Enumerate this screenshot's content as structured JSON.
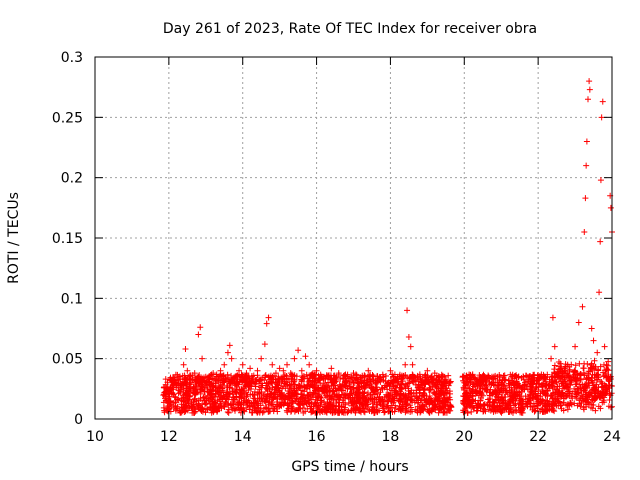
{
  "chart_data": {
    "type": "scatter",
    "title": "Day 261 of 2023, Rate Of TEC Index for receiver obra",
    "xlabel": "GPS time / hours",
    "ylabel": "ROTI / TECUs",
    "xlim": [
      10,
      24
    ],
    "ylim": [
      0,
      0.3
    ],
    "x_ticks": [
      10,
      12,
      14,
      16,
      18,
      20,
      22,
      24
    ],
    "x_tick_labels": [
      "10",
      "12",
      "14",
      "16",
      "18",
      "20",
      "22",
      "24"
    ],
    "y_ticks": [
      0,
      0.05,
      0.1,
      0.15,
      0.2,
      0.25,
      0.3
    ],
    "y_tick_labels": [
      "0",
      "0.05",
      "0.1",
      "0.15",
      "0.2",
      "0.25",
      "0.3"
    ],
    "grid": true,
    "marker": "+",
    "marker_color": "#ff0000",
    "series": [
      {
        "points": [
          [
            11.9,
            0.019
          ],
          [
            12.0,
            0.025
          ],
          [
            12.1,
            0.032
          ],
          [
            12.2,
            0.028
          ],
          [
            12.3,
            0.035
          ],
          [
            12.4,
            0.045
          ],
          [
            12.45,
            0.058
          ],
          [
            12.5,
            0.04
          ],
          [
            12.6,
            0.03
          ],
          [
            12.7,
            0.038
          ],
          [
            12.8,
            0.07
          ],
          [
            12.85,
            0.076
          ],
          [
            12.9,
            0.05
          ],
          [
            13.0,
            0.035
          ],
          [
            13.1,
            0.03
          ],
          [
            13.2,
            0.038
          ],
          [
            13.3,
            0.032
          ],
          [
            13.4,
            0.04
          ],
          [
            13.5,
            0.045
          ],
          [
            13.6,
            0.055
          ],
          [
            13.65,
            0.061
          ],
          [
            13.7,
            0.05
          ],
          [
            13.8,
            0.035
          ],
          [
            13.9,
            0.04
          ],
          [
            14.0,
            0.045
          ],
          [
            14.1,
            0.038
          ],
          [
            14.2,
            0.042
          ],
          [
            14.3,
            0.036
          ],
          [
            14.4,
            0.04
          ],
          [
            14.5,
            0.05
          ],
          [
            14.6,
            0.062
          ],
          [
            14.65,
            0.079
          ],
          [
            14.7,
            0.084
          ],
          [
            14.8,
            0.045
          ],
          [
            14.9,
            0.038
          ],
          [
            15.0,
            0.042
          ],
          [
            15.1,
            0.04
          ],
          [
            15.2,
            0.045
          ],
          [
            15.3,
            0.038
          ],
          [
            15.4,
            0.05
          ],
          [
            15.5,
            0.057
          ],
          [
            15.6,
            0.04
          ],
          [
            15.7,
            0.052
          ],
          [
            15.8,
            0.045
          ],
          [
            15.9,
            0.038
          ],
          [
            16.0,
            0.04
          ],
          [
            16.2,
            0.035
          ],
          [
            16.4,
            0.042
          ],
          [
            16.6,
            0.038
          ],
          [
            16.8,
            0.035
          ],
          [
            17.0,
            0.038
          ],
          [
            17.2,
            0.034
          ],
          [
            17.4,
            0.04
          ],
          [
            17.6,
            0.032
          ],
          [
            17.8,
            0.035
          ],
          [
            18.0,
            0.04
          ],
          [
            18.2,
            0.035
          ],
          [
            18.4,
            0.045
          ],
          [
            18.45,
            0.09
          ],
          [
            18.5,
            0.068
          ],
          [
            18.55,
            0.06
          ],
          [
            18.6,
            0.045
          ],
          [
            18.8,
            0.035
          ],
          [
            19.0,
            0.04
          ],
          [
            19.2,
            0.038
          ],
          [
            19.4,
            0.035
          ],
          [
            19.6,
            0.03
          ],
          [
            20.0,
            0.03
          ],
          [
            20.2,
            0.035
          ],
          [
            20.4,
            0.028
          ],
          [
            20.6,
            0.032
          ],
          [
            20.8,
            0.035
          ],
          [
            21.0,
            0.03
          ],
          [
            21.2,
            0.032
          ],
          [
            21.4,
            0.03
          ],
          [
            21.6,
            0.035
          ],
          [
            21.8,
            0.03
          ],
          [
            22.0,
            0.032
          ],
          [
            22.2,
            0.035
          ],
          [
            22.35,
            0.05
          ],
          [
            22.4,
            0.084
          ],
          [
            22.45,
            0.06
          ],
          [
            22.6,
            0.04
          ],
          [
            22.8,
            0.045
          ],
          [
            23.0,
            0.06
          ],
          [
            23.1,
            0.08
          ],
          [
            23.2,
            0.093
          ],
          [
            23.25,
            0.155
          ],
          [
            23.28,
            0.183
          ],
          [
            23.3,
            0.21
          ],
          [
            23.32,
            0.23
          ],
          [
            23.35,
            0.265
          ],
          [
            23.38,
            0.28
          ],
          [
            23.4,
            0.273
          ],
          [
            23.45,
            0.075
          ],
          [
            23.5,
            0.065
          ],
          [
            23.6,
            0.055
          ],
          [
            23.65,
            0.105
          ],
          [
            23.68,
            0.147
          ],
          [
            23.7,
            0.198
          ],
          [
            23.72,
            0.25
          ],
          [
            23.75,
            0.263
          ],
          [
            23.8,
            0.06
          ],
          [
            23.85,
            0.045
          ],
          [
            23.9,
            0.035
          ],
          [
            23.95,
            0.185
          ],
          [
            23.97,
            0.175
          ],
          [
            24.0,
            0.155
          ]
        ]
      }
    ]
  }
}
